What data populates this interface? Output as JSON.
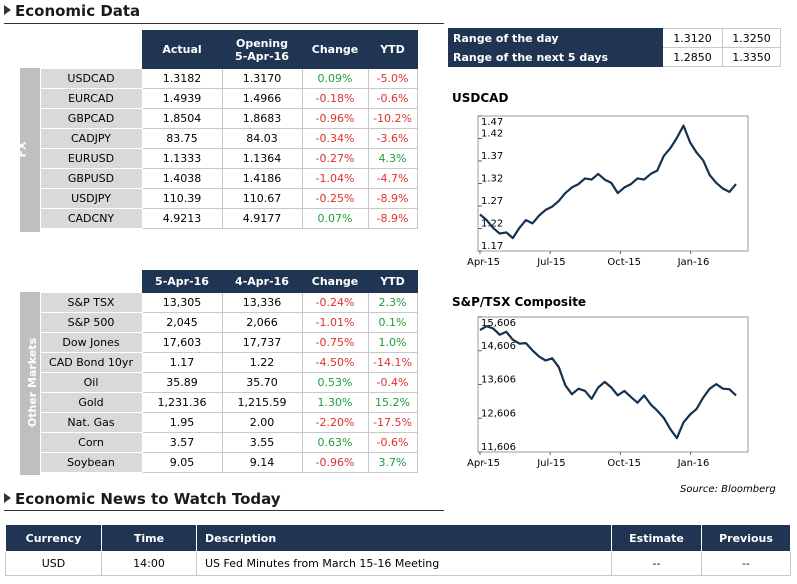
{
  "economic_data": {
    "title": "Economic Data",
    "fx": {
      "side_label": "FX",
      "headers": [
        "Actual",
        "Opening\n5-Apr-16",
        "Change",
        "YTD"
      ],
      "header_opening_1": "Opening",
      "header_opening_2": "5-Apr-16",
      "rows": [
        {
          "name": "USDCAD",
          "actual": "1.3182",
          "opening": "1.3170",
          "change": "0.09%",
          "ytd": "-5.0%"
        },
        {
          "name": "EURCAD",
          "actual": "1.4939",
          "opening": "1.4966",
          "change": "-0.18%",
          "ytd": "-0.6%"
        },
        {
          "name": "GBPCAD",
          "actual": "1.8504",
          "opening": "1.8683",
          "change": "-0.96%",
          "ytd": "-10.2%"
        },
        {
          "name": "CADJPY",
          "actual": "83.75",
          "opening": "84.03",
          "change": "-0.34%",
          "ytd": "-3.6%"
        },
        {
          "name": "EURUSD",
          "actual": "1.1333",
          "opening": "1.1364",
          "change": "-0.27%",
          "ytd": "4.3%"
        },
        {
          "name": "GBPUSD",
          "actual": "1.4038",
          "opening": "1.4186",
          "change": "-1.04%",
          "ytd": "-4.7%"
        },
        {
          "name": "USDJPY",
          "actual": "110.39",
          "opening": "110.67",
          "change": "-0.25%",
          "ytd": "-8.9%"
        },
        {
          "name": "CADCNY",
          "actual": "4.9213",
          "opening": "4.9177",
          "change": "0.07%",
          "ytd": "-8.9%"
        }
      ]
    },
    "markets": {
      "side_label": "Other Markets",
      "headers": [
        "5-Apr-16",
        "4-Apr-16",
        "Change",
        "YTD"
      ],
      "rows": [
        {
          "name": "S&P TSX",
          "a": "13,305",
          "b": "13,336",
          "change": "-0.24%",
          "ytd": "2.3%"
        },
        {
          "name": "S&P 500",
          "a": "2,045",
          "b": "2,066",
          "change": "-1.01%",
          "ytd": "0.1%"
        },
        {
          "name": "Dow Jones",
          "a": "17,603",
          "b": "17,737",
          "change": "-0.75%",
          "ytd": "1.0%"
        },
        {
          "name": "CAD Bond 10yr",
          "a": "1.17",
          "b": "1.22",
          "change": "-4.50%",
          "ytd": "-14.1%"
        },
        {
          "name": "Oil",
          "a": "35.89",
          "b": "35.70",
          "change": "0.53%",
          "ytd": "-0.4%"
        },
        {
          "name": "Gold",
          "a": "1,231.36",
          "b": "1,215.59",
          "change": "1.30%",
          "ytd": "15.2%"
        },
        {
          "name": "Nat. Gas",
          "a": "1.95",
          "b": "2.00",
          "change": "-2.20%",
          "ytd": "-17.5%"
        },
        {
          "name": "Corn",
          "a": "3.57",
          "b": "3.55",
          "change": "0.63%",
          "ytd": "-0.6%"
        },
        {
          "name": "Soybean",
          "a": "9.05",
          "b": "9.14",
          "change": "-0.96%",
          "ytd": "3.7%"
        }
      ]
    },
    "range": {
      "day_label": "Range of the day",
      "day_low": "1.3120",
      "day_high": "1.3250",
      "week_label": "Range of the next 5 days",
      "week_low": "1.2850",
      "week_high": "1.3350"
    },
    "source": "Source: Bloomberg"
  },
  "chart_data": [
    {
      "type": "line",
      "title": "USDCAD",
      "x_ticks": [
        "Apr-15",
        "Jul-15",
        "Oct-15",
        "Jan-16"
      ],
      "y_ticks": [
        "1.17",
        "1.22",
        "1.27",
        "1.32",
        "1.37",
        "1.42",
        "1.47"
      ],
      "ylim": [
        1.17,
        1.47
      ],
      "series": [
        {
          "values": [
            1.25,
            1.24,
            1.22,
            1.21,
            1.21,
            1.2,
            1.22,
            1.24,
            1.23,
            1.25,
            1.26,
            1.27,
            1.28,
            1.3,
            1.31,
            1.32,
            1.33,
            1.33,
            1.34,
            1.33,
            1.32,
            1.3,
            1.31,
            1.32,
            1.33,
            1.33,
            1.34,
            1.35,
            1.38,
            1.4,
            1.42,
            1.45,
            1.41,
            1.39,
            1.37,
            1.34,
            1.32,
            1.31,
            1.3,
            1.32
          ]
        }
      ]
    },
    {
      "type": "line",
      "title": "S&P/TSX Composite",
      "x_ticks": [
        "Apr-15",
        "Jul-15",
        "Oct-15",
        "Jan-16"
      ],
      "y_ticks": [
        "11,606",
        "12,606",
        "13,606",
        "14,606",
        "15,606"
      ],
      "ylim": [
        11606,
        15606
      ],
      "series": [
        {
          "values": [
            15200,
            15350,
            15250,
            15100,
            15150,
            14950,
            14800,
            14850,
            14600,
            14450,
            14300,
            14400,
            14100,
            13600,
            13300,
            13500,
            13400,
            13200,
            13500,
            13700,
            13500,
            13300,
            13400,
            13250,
            13050,
            13300,
            13000,
            12850,
            12600,
            12300,
            12000,
            12500,
            12700,
            12900,
            13200,
            13500,
            13600,
            13500,
            13450,
            13300
          ]
        }
      ]
    }
  ],
  "news": {
    "title": "Economic News to Watch Today",
    "headers": {
      "currency": "Currency",
      "time": "Time",
      "description": "Description",
      "estimate": "Estimate",
      "previous": "Previous"
    },
    "rows": [
      {
        "currency": "USD",
        "time": "14:00",
        "description": "US Fed Minutes from March 15-16 Meeting",
        "estimate": "--",
        "previous": "--"
      }
    ]
  }
}
